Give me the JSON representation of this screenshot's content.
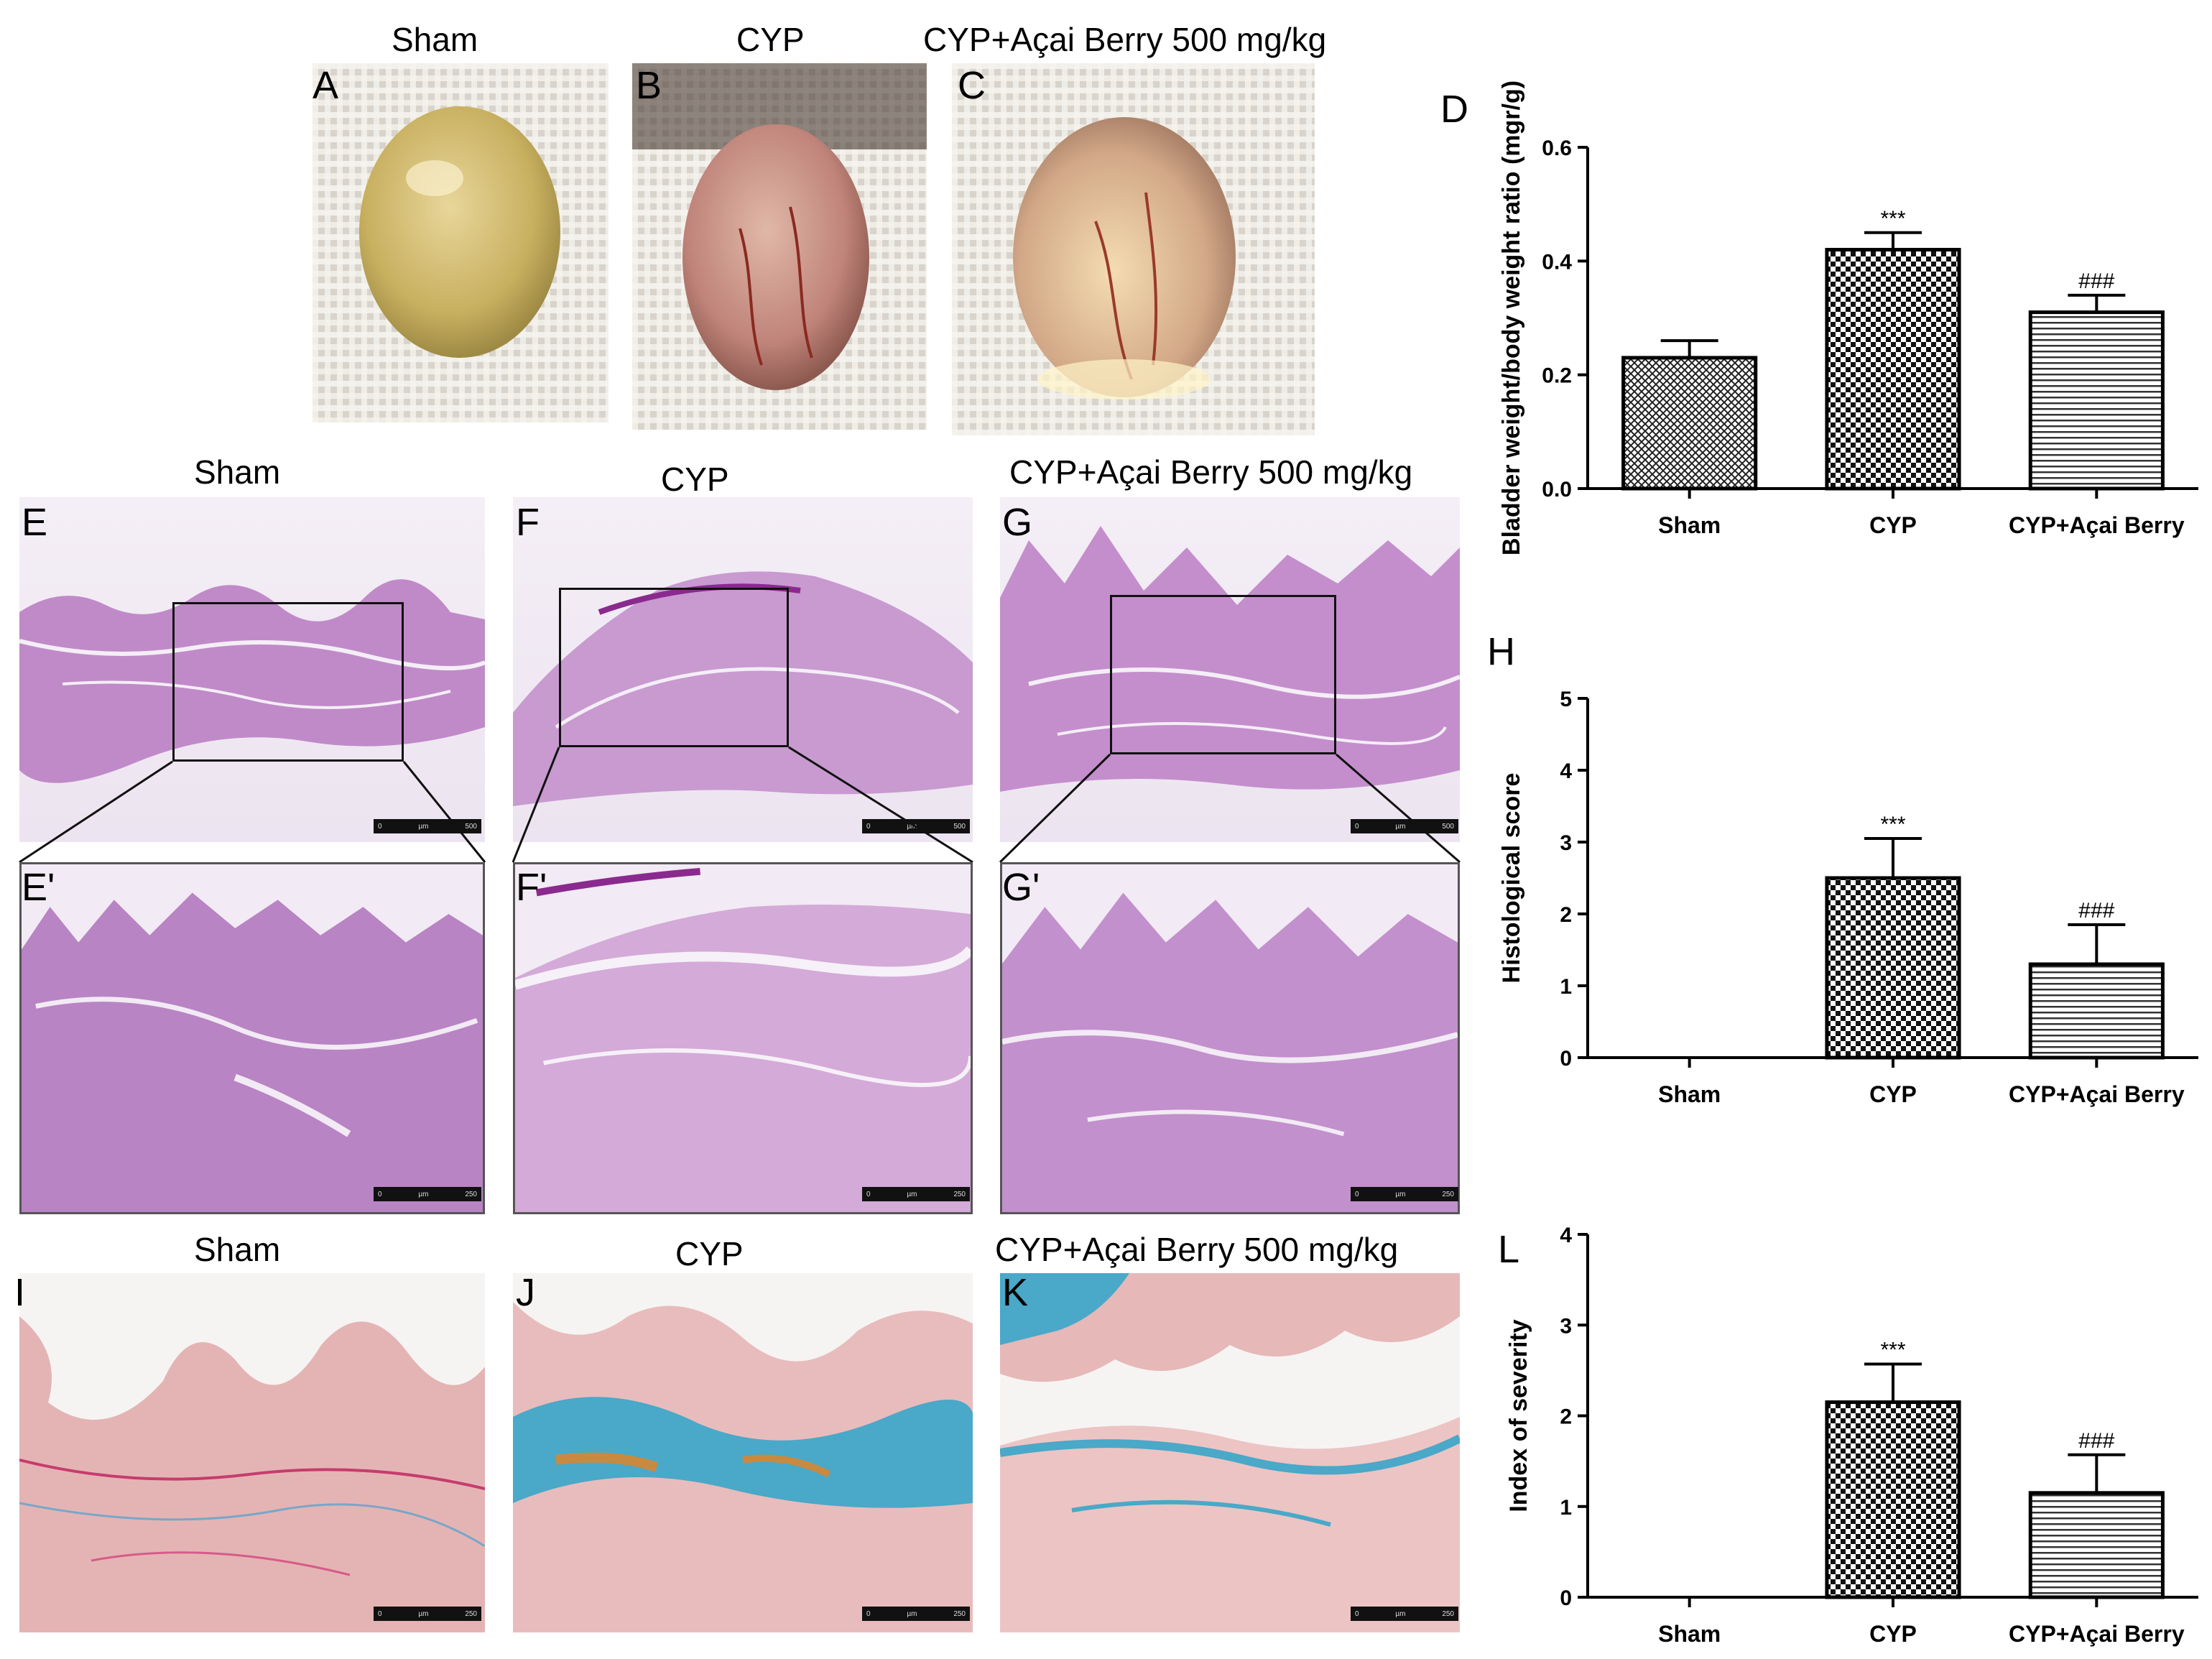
{
  "top_row": {
    "titles": [
      "Sham",
      "CYP",
      "CYP+Açai Berry 500 mg/kg"
    ],
    "labels": [
      "A",
      "B",
      "C"
    ]
  },
  "middle_row": {
    "titles": [
      "Sham",
      "CYP",
      "CYP+Açai Berry 500 mg/kg"
    ],
    "labels": [
      "E",
      "F",
      "G"
    ],
    "zoom_labels": [
      "E'",
      "F'",
      "G'"
    ],
    "scale_text_low": [
      "0",
      "µm",
      "500"
    ],
    "scale_text_high": [
      "0",
      "µm",
      "250"
    ]
  },
  "bottom_row": {
    "titles": [
      "Sham",
      "CYP",
      "CYP+Açai Berry 500 mg/kg"
    ],
    "labels": [
      "I",
      "J",
      "K"
    ],
    "scale_text": [
      "0",
      "µm",
      "250"
    ]
  },
  "colors": {
    "pattern_dark": "#111111",
    "he_stain": "#b070b8",
    "masson_blue": "#4aa8c8",
    "masson_pink": "#e8b4b8"
  },
  "chart_data": [
    {
      "panel": "D",
      "type": "bar",
      "categories": [
        "Sham",
        "CYP",
        "CYP+Açai Berry"
      ],
      "values": [
        0.23,
        0.42,
        0.31
      ],
      "errors": [
        0.03,
        0.03,
        0.03
      ],
      "annotations": [
        "",
        "***",
        "###"
      ],
      "ylabel": "Bladder weight/body weight ratio (mgr/g)",
      "ylim": [
        0.0,
        0.6
      ],
      "yticks": [
        "0.0",
        "0.2",
        "0.4",
        "0.6"
      ],
      "patterns": [
        "crosshatch",
        "checker",
        "horizontal"
      ]
    },
    {
      "panel": "H",
      "type": "bar",
      "categories": [
        "Sham",
        "CYP",
        "CYP+Açai Berry"
      ],
      "values": [
        0.0,
        2.5,
        1.3
      ],
      "errors": [
        0.0,
        0.55,
        0.55
      ],
      "annotations": [
        "",
        "***",
        "###"
      ],
      "ylabel": "Histological score",
      "ylim": [
        0,
        5
      ],
      "yticks": [
        "0",
        "1",
        "2",
        "3",
        "4",
        "5"
      ],
      "patterns": [
        "crosshatch",
        "checker",
        "horizontal"
      ]
    },
    {
      "panel": "L",
      "type": "bar",
      "categories": [
        "Sham",
        "CYP",
        "CYP+Açai Berry"
      ],
      "values": [
        0.0,
        2.15,
        1.15
      ],
      "errors": [
        0.0,
        0.42,
        0.42
      ],
      "annotations": [
        "",
        "***",
        "###"
      ],
      "ylabel": "Index of severity",
      "ylim": [
        0,
        4
      ],
      "yticks": [
        "0",
        "1",
        "2",
        "3",
        "4"
      ],
      "patterns": [
        "crosshatch",
        "checker",
        "horizontal"
      ]
    }
  ]
}
